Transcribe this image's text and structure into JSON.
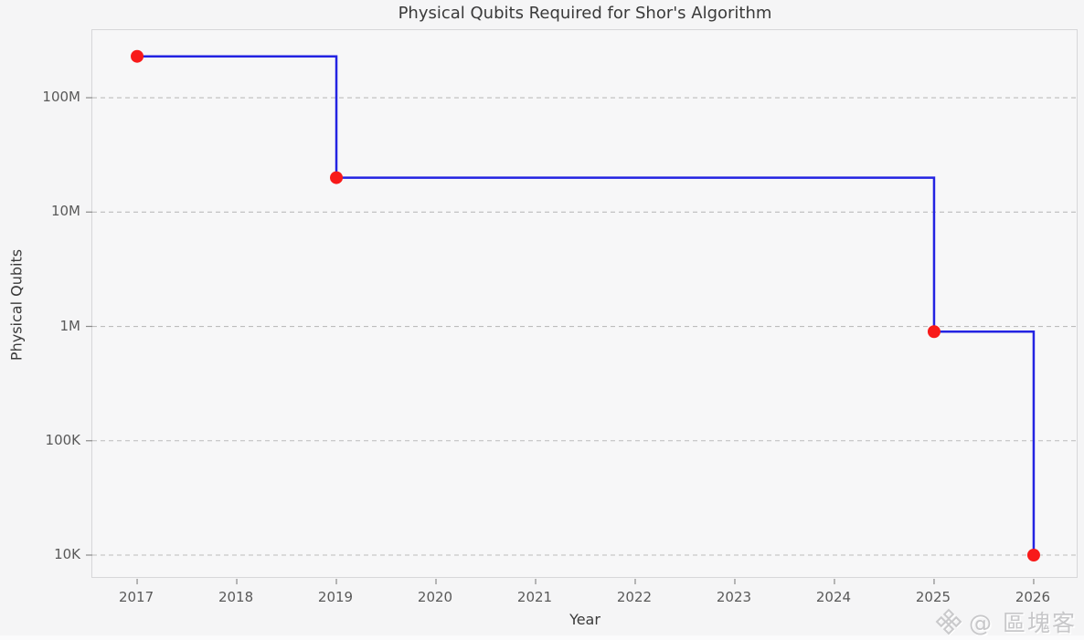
{
  "chart_data": {
    "type": "line",
    "drawstyle": "steps-post",
    "title": "Physical Qubits Required for Shor's Algorithm",
    "xlabel": "Year",
    "ylabel": "Physical Qubits",
    "x": [
      2017,
      2019,
      2025,
      2026
    ],
    "values": [
      230000000,
      20000000,
      900000,
      10000
    ],
    "xticks": [
      2017,
      2018,
      2019,
      2020,
      2021,
      2022,
      2023,
      2024,
      2025,
      2026
    ],
    "yticks": [
      {
        "label": "10K",
        "value": 10000
      },
      {
        "label": "100K",
        "value": 100000
      },
      {
        "label": "1M",
        "value": 1000000
      },
      {
        "label": "10M",
        "value": 10000000
      },
      {
        "label": "100M",
        "value": 100000000
      }
    ],
    "xlim": [
      2016.55,
      2026.45
    ],
    "ylim": [
      6200,
      390000000
    ],
    "yscale": "log",
    "grid": "horizontal-dashed",
    "legend_position": "none",
    "colors": {
      "line": "#2323e2",
      "marker": "#f81a1a",
      "gridline": "#bcbcbc",
      "background": "#f5f5f6",
      "plot_background": "#f7f7f8",
      "spine": "#d7d7d9",
      "tick_mark": "#8a8a8a"
    }
  },
  "watermark": {
    "logo_icon": "binance-diamond-logo",
    "text": "@ 區塊客",
    "color": "#c7c7c9"
  }
}
